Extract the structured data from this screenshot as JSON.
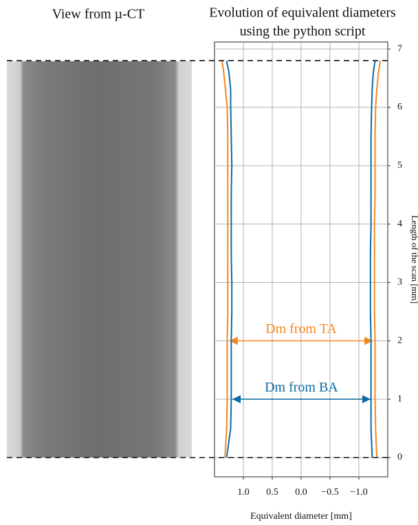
{
  "left_panel": {
    "title": "View from µ-CT"
  },
  "chart_data": {
    "type": "line",
    "title": [
      "Evolution of equivalent diameters",
      "using the python script"
    ],
    "xlabel": "Equivalent diameter [mm]",
    "ylabel": "Length of the scan [mm]",
    "xlim": [
      1.5,
      -1.5
    ],
    "ylim": [
      -0.33,
      7.12
    ],
    "xticks": [
      {
        "value": 1.0,
        "label": "1.0"
      },
      0.5,
      {
        "value": 0.0,
        "label": "0.0"
      },
      {
        "value": -0.5,
        "label": "−0.5"
      },
      {
        "value": -1.0,
        "label": "−1.0"
      }
    ],
    "yticks": [
      0,
      1,
      2,
      3,
      4,
      5,
      6,
      7
    ],
    "grid": true,
    "dashed_levels": [
      0,
      6.8
    ],
    "y": [
      0,
      0.5,
      1,
      1.5,
      2,
      2.5,
      3,
      3.5,
      4,
      4.5,
      5,
      5.5,
      6,
      6.3,
      6.6,
      6.8
    ],
    "series": [
      {
        "name": "Dm from TA",
        "color": "#f5861f",
        "x_left": [
          1.32,
          1.29,
          1.28,
          1.28,
          1.28,
          1.27,
          1.27,
          1.27,
          1.27,
          1.27,
          1.27,
          1.27,
          1.28,
          1.31,
          1.34,
          1.37
        ],
        "x_right": [
          -1.31,
          -1.29,
          -1.28,
          -1.28,
          -1.28,
          -1.27,
          -1.27,
          -1.27,
          -1.27,
          -1.28,
          -1.28,
          -1.28,
          -1.29,
          -1.31,
          -1.34,
          -1.37
        ],
        "arrow_y": 2,
        "arrow_x": [
          1.24,
          -1.24
        ]
      },
      {
        "name": "Dm from BA",
        "color": "#0b6aa2",
        "x_left": [
          1.29,
          1.22,
          1.21,
          1.21,
          1.21,
          1.2,
          1.2,
          1.21,
          1.21,
          1.21,
          1.2,
          1.21,
          1.22,
          1.22,
          1.25,
          1.29
        ],
        "x_right": [
          -1.23,
          -1.21,
          -1.21,
          -1.21,
          -1.21,
          -1.2,
          -1.2,
          -1.2,
          -1.21,
          -1.21,
          -1.21,
          -1.21,
          -1.22,
          -1.23,
          -1.25,
          -1.28
        ],
        "arrow_y": 1,
        "arrow_x": [
          1.19,
          -1.2
        ]
      }
    ]
  }
}
